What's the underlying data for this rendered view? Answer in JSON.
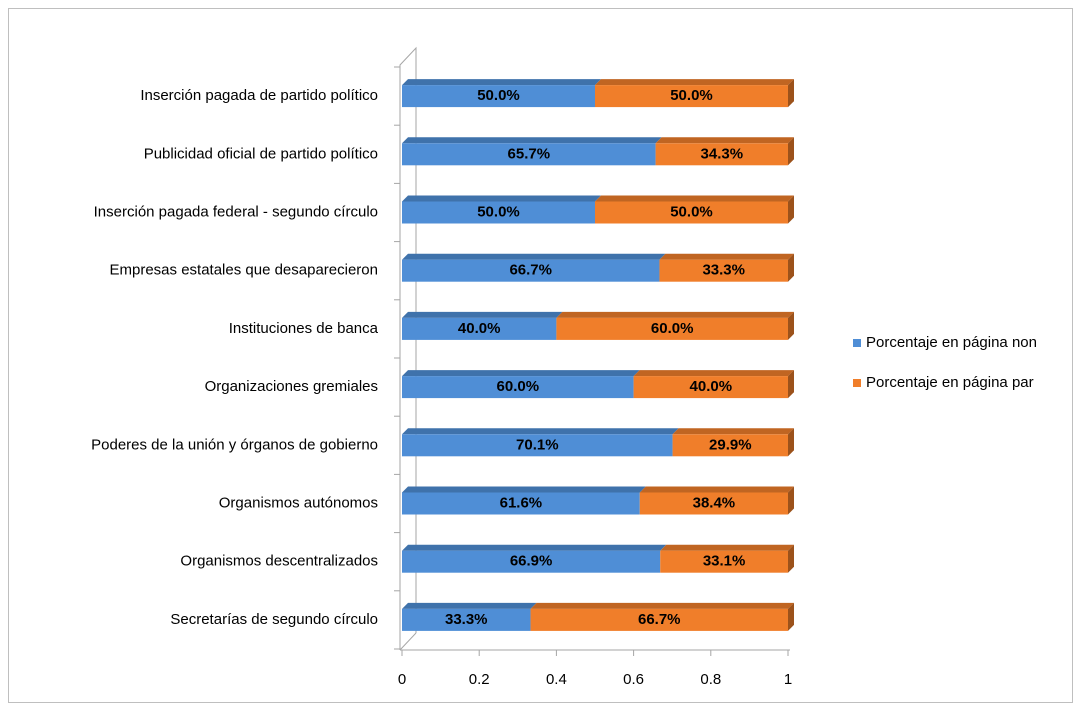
{
  "chart_data": {
    "type": "stacked_bar_horizontal",
    "categories": [
      "Inserción pagada de partido político",
      "Publicidad oficial de partido político",
      "Inserción pagada federal - segundo círculo",
      "Empresas estatales que desaparecieron",
      "Instituciones de banca",
      "Organizaciones gremiales",
      "Poderes de la unión y órganos de gobierno",
      "Organismos autónomos",
      "Organismos descentralizados",
      "Secretarías de segundo círculo"
    ],
    "series": [
      {
        "name": "Porcentaje en página non",
        "color": "#4f8ed6",
        "values": [
          0.5,
          0.657,
          0.5,
          0.667,
          0.4,
          0.6,
          0.701,
          0.616,
          0.669,
          0.333
        ],
        "value_labels": [
          "50.0%",
          "65.7%",
          "50.0%",
          "66.7%",
          "40.0%",
          "60.0%",
          "70.1%",
          "61.6%",
          "66.9%",
          "33.3%"
        ]
      },
      {
        "name": "Porcentaje en página par",
        "color": "#f07e2a",
        "values": [
          0.5,
          0.343,
          0.5,
          0.333,
          0.6,
          0.4,
          0.299,
          0.384,
          0.331,
          0.667
        ],
        "value_labels": [
          "50.0%",
          "34.3%",
          "50.0%",
          "33.3%",
          "60.0%",
          "40.0%",
          "29.9%",
          "38.4%",
          "33.1%",
          "66.7%"
        ]
      }
    ],
    "xlim": [
      0,
      1
    ],
    "xticks": [
      0,
      0.2,
      0.4,
      0.6,
      0.8,
      1
    ],
    "legend": "right"
  }
}
